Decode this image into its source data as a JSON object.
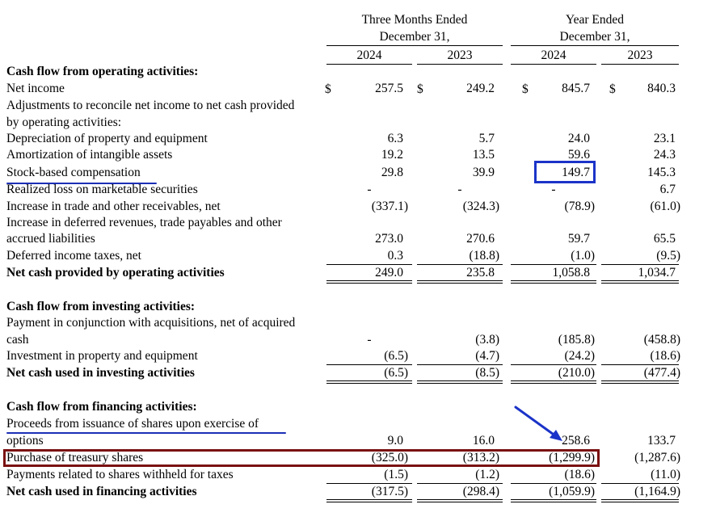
{
  "header": {
    "three_months_line1": "Three Months Ended",
    "three_months_line2": "December 31,",
    "year_line1": "Year Ended",
    "year_line2": "December 31,",
    "years": [
      "2024",
      "2023",
      "2024",
      "2023"
    ]
  },
  "currency_symbol": "$",
  "rows": [
    {
      "label": "Cash flow from operating activities:",
      "bold": true,
      "values": []
    },
    {
      "label": "Net income",
      "values": [
        "257.5",
        "249.2",
        "845.7",
        "840.3"
      ]
    },
    {
      "label": "Adjustments to reconcile net income to net cash provided",
      "values": []
    },
    {
      "label": "by operating activities:",
      "values": []
    },
    {
      "label": "Depreciation of property and equipment",
      "values": [
        "6.3",
        "5.7",
        "24.0",
        "23.1"
      ]
    },
    {
      "label": "Amortization of intangible assets",
      "values": [
        "19.2",
        "13.5",
        "59.6",
        "24.3"
      ]
    },
    {
      "label": "Stock-based compensation",
      "values": [
        "29.8",
        "39.9",
        "149.7",
        "145.3"
      ]
    },
    {
      "label": "Realized loss on marketable securities",
      "values": [
        "-",
        "-",
        "-",
        "6.7"
      ]
    },
    {
      "label": "Increase in trade and other receivables, net",
      "values": [
        "(337.1)",
        "(324.3)",
        "(78.9)",
        "(61.0)"
      ]
    },
    {
      "label": "Increase in deferred revenues, trade payables and other",
      "values": []
    },
    {
      "label": "accrued liabilities",
      "values": [
        "273.0",
        "270.6",
        "59.7",
        "65.5"
      ]
    },
    {
      "label": "Deferred income taxes, net",
      "values": [
        "0.3",
        "(18.8)",
        "(1.0)",
        "(9.5)"
      ]
    },
    {
      "label": "Net cash provided by operating activities",
      "bold": true,
      "values": [
        "249.0",
        "235.8",
        "1,058.8",
        "1,034.7"
      ]
    },
    {
      "label": "Cash flow from investing activities:",
      "bold": true,
      "values": []
    },
    {
      "label": "Payment in conjunction with acquisitions, net of acquired",
      "values": []
    },
    {
      "label": "cash",
      "values": [
        "-",
        "(3.8)",
        "(185.8)",
        "(458.8)"
      ]
    },
    {
      "label": "Investment in property and equipment",
      "values": [
        "(6.5)",
        "(4.7)",
        "(24.2)",
        "(18.6)"
      ]
    },
    {
      "label": "Net cash used in investing activities",
      "bold": true,
      "values": [
        "(6.5)",
        "(8.5)",
        "(210.0)",
        "(477.4)"
      ]
    },
    {
      "label": "Cash flow from financing activities:",
      "bold": true,
      "values": []
    },
    {
      "label": "Proceeds from issuance of shares upon exercise of",
      "values": []
    },
    {
      "label": "options",
      "values": [
        "9.0",
        "16.0",
        "258.6",
        "133.7"
      ]
    },
    {
      "label": "Purchase of treasury shares",
      "values": [
        "(325.0)",
        "(313.2)",
        "(1,299.9)",
        "(1,287.6)"
      ]
    },
    {
      "label": "Payments related to shares withheld for taxes",
      "values": [
        "(1.5)",
        "(1.2)",
        "(18.6)",
        "(11.0)"
      ]
    },
    {
      "label": "Net cash used in financing activities",
      "bold": true,
      "values": [
        "(317.5)",
        "(298.4)",
        "(1,059.9)",
        "(1,164.9)"
      ]
    }
  ]
}
